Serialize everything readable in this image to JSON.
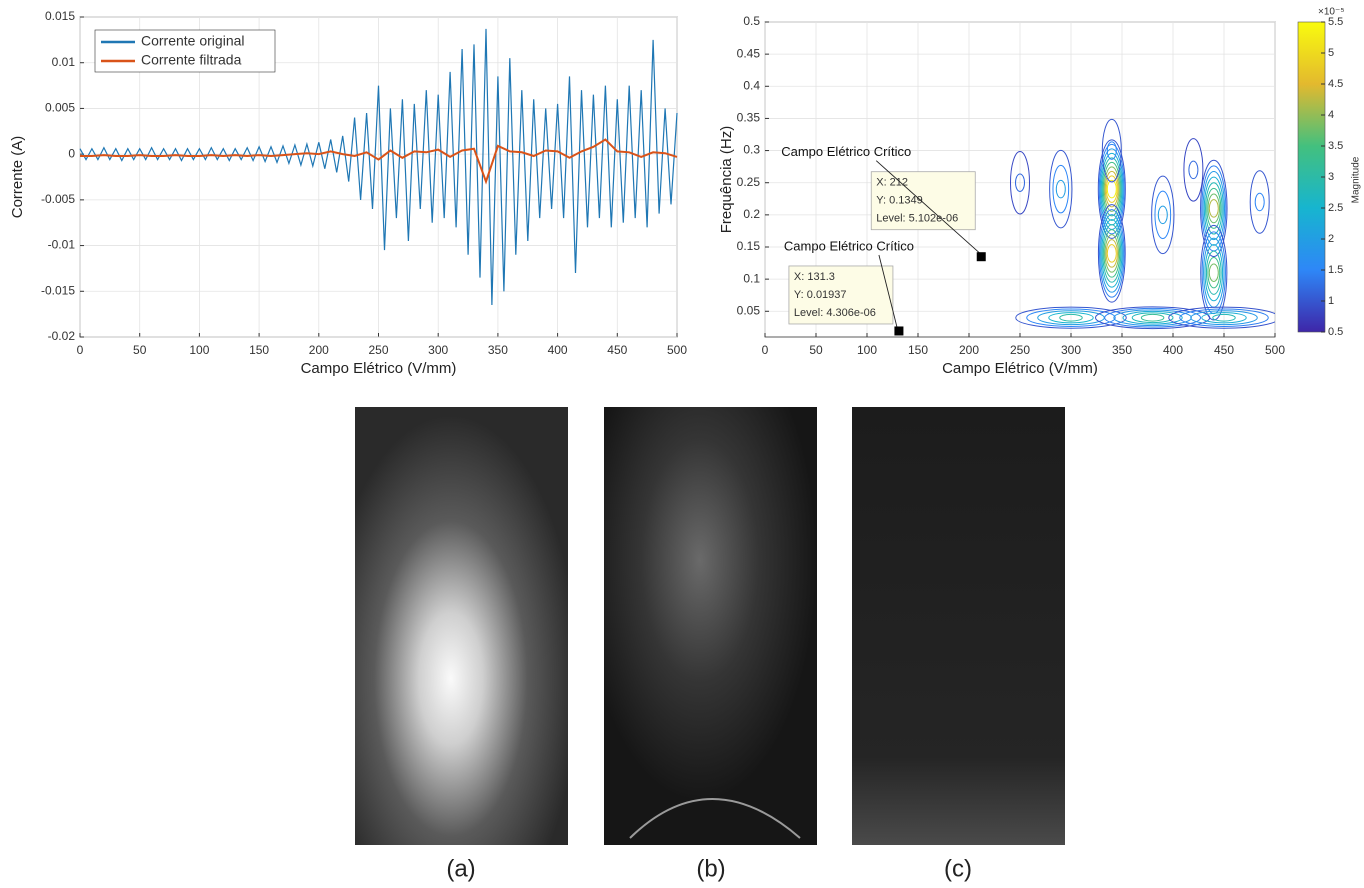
{
  "chart_data": [
    {
      "type": "line",
      "xlabel": "Campo Elétrico (V/mm)",
      "ylabel": "Corrente (A)",
      "xlim": [
        0,
        500
      ],
      "xticks": [
        0,
        50,
        100,
        150,
        200,
        250,
        300,
        350,
        400,
        450,
        500
      ],
      "ylim": [
        -0.02,
        0.015
      ],
      "yticks": [
        -0.02,
        -0.015,
        -0.01,
        -0.005,
        0,
        0.005,
        0.01,
        0.015
      ],
      "grid": true,
      "legend": "upper-left",
      "series": [
        {
          "name": "Corrente original",
          "color": "#1f77b4",
          "x": [
            0,
            5,
            10,
            15,
            20,
            25,
            30,
            35,
            40,
            45,
            50,
            55,
            60,
            65,
            70,
            75,
            80,
            85,
            90,
            95,
            100,
            105,
            110,
            115,
            120,
            125,
            130,
            135,
            140,
            145,
            150,
            155,
            160,
            165,
            170,
            175,
            180,
            185,
            190,
            195,
            200,
            205,
            210,
            215,
            220,
            225,
            230,
            235,
            240,
            245,
            250,
            255,
            260,
            265,
            270,
            275,
            280,
            285,
            290,
            295,
            300,
            305,
            310,
            315,
            320,
            325,
            330,
            335,
            340,
            345,
            350,
            355,
            360,
            365,
            370,
            375,
            380,
            385,
            390,
            395,
            400,
            405,
            410,
            415,
            420,
            425,
            430,
            435,
            440,
            445,
            450,
            455,
            460,
            465,
            470,
            475,
            480,
            485,
            490,
            495,
            500
          ],
          "values": [
            0.0006,
            -0.0006,
            0.0006,
            -0.0006,
            0.0007,
            -0.0006,
            0.0006,
            -0.0007,
            0.0006,
            -0.0006,
            0.0006,
            -0.0006,
            0.0007,
            -0.0006,
            0.0006,
            -0.0006,
            0.0006,
            -0.0007,
            0.0006,
            -0.0006,
            0.0006,
            -0.0006,
            0.0007,
            -0.0006,
            0.0006,
            -0.0007,
            0.0006,
            -0.0006,
            0.0007,
            -0.0007,
            0.0008,
            -0.0008,
            0.0008,
            -0.0009,
            0.0009,
            -0.001,
            0.001,
            -0.0012,
            0.0011,
            -0.0013,
            0.0013,
            -0.0016,
            0.0016,
            -0.002,
            0.002,
            -0.003,
            0.004,
            -0.005,
            0.0045,
            -0.006,
            0.0075,
            -0.0105,
            0.005,
            -0.007,
            0.006,
            -0.0095,
            0.0055,
            -0.006,
            0.007,
            -0.0075,
            0.0065,
            -0.007,
            0.009,
            -0.008,
            0.0115,
            -0.011,
            0.012,
            -0.0135,
            0.0137,
            -0.0165,
            0.0085,
            -0.015,
            0.0105,
            -0.011,
            0.007,
            -0.0095,
            0.006,
            -0.007,
            0.005,
            -0.006,
            0.0055,
            -0.007,
            0.0085,
            -0.013,
            0.007,
            -0.008,
            0.0065,
            -0.007,
            0.0075,
            -0.008,
            0.006,
            -0.0075,
            0.0075,
            -0.007,
            0.007,
            -0.008,
            0.0125,
            -0.0065,
            0.005,
            -0.0055,
            0.0045
          ]
        },
        {
          "name": "Corrente filtrada",
          "color": "#d95319",
          "x": [
            0,
            10,
            20,
            30,
            40,
            50,
            60,
            70,
            80,
            90,
            100,
            110,
            120,
            130,
            140,
            150,
            160,
            170,
            180,
            190,
            200,
            210,
            220,
            230,
            240,
            250,
            260,
            270,
            280,
            290,
            300,
            310,
            320,
            330,
            340,
            350,
            360,
            370,
            380,
            390,
            400,
            410,
            420,
            430,
            440,
            450,
            460,
            470,
            480,
            490,
            500
          ],
          "values": [
            -0.0002,
            -0.0002,
            -0.0001,
            -0.0002,
            -0.0002,
            -0.0001,
            -0.0002,
            -0.0002,
            -0.0001,
            -0.0002,
            -0.0002,
            -0.0001,
            -0.0002,
            -0.0001,
            -0.0002,
            -0.0001,
            -0.0002,
            -0.0001,
            0,
            0.0001,
            0,
            0.0003,
            0,
            -0.0002,
            0.0002,
            -0.0006,
            0.0004,
            -0.0004,
            0.0003,
            0.0002,
            0.0005,
            -0.0003,
            0.0004,
            0.0006,
            -0.003,
            0.0009,
            0.0003,
            0.0002,
            -0.0002,
            0.0004,
            0.0003,
            -0.0004,
            0.0003,
            0.0008,
            0.0016,
            0.0003,
            0.0002,
            -0.0003,
            0.0002,
            0.0001,
            -0.0003
          ]
        }
      ]
    },
    {
      "type": "contour",
      "xlabel": "Campo Elétrico (V/mm)",
      "ylabel": "Frequência (Hz)",
      "xlim": [
        0,
        500
      ],
      "xticks": [
        0,
        50,
        100,
        150,
        200,
        250,
        300,
        350,
        400,
        450,
        500
      ],
      "ylim": [
        0.01,
        0.5
      ],
      "yticks": [
        0.05,
        0.1,
        0.15,
        0.2,
        0.25,
        0.3,
        0.35,
        0.4,
        0.45,
        0.5
      ],
      "grid": true,
      "colorbar_label": "Magnitude",
      "colorbar_multiplier": "×10⁻⁵",
      "clim": [
        0.5,
        5.5
      ],
      "cticks": [
        0.5,
        1,
        1.5,
        2,
        2.5,
        3,
        3.5,
        4,
        4.5,
        5,
        5.5
      ],
      "series": [
        {
          "x": [
            340,
            340,
            440,
            440,
            290,
            390,
            485,
            250,
            300,
            380,
            450,
            340,
            420
          ],
          "y": [
            0.24,
            0.14,
            0.21,
            0.11,
            0.24,
            0.2,
            0.22,
            0.25,
            0.04,
            0.04,
            0.04,
            0.3,
            0.27
          ],
          "values": [
            5.3,
            4.8,
            4.2,
            3.8,
            2,
            2,
            1.5,
            1.2,
            3,
            3.2,
            2.8,
            1.5,
            1.2
          ]
        }
      ],
      "datatips": [
        {
          "label": "Campo Elétrico Crítico",
          "x": 212,
          "y": 0.1349,
          "lines": [
            "X: 212",
            "Y: 0.1349",
            "Level: 5.102e-06"
          ]
        },
        {
          "label": "Campo Elétrico Crítico",
          "x": 131.3,
          "y": 0.01937,
          "lines": [
            "X: 131.3",
            "Y: 0.01937",
            "Level: 4.306e-06"
          ]
        }
      ]
    }
  ],
  "panels": [
    {
      "label": "(a)"
    },
    {
      "label": "(b)"
    },
    {
      "label": "(c)"
    }
  ]
}
